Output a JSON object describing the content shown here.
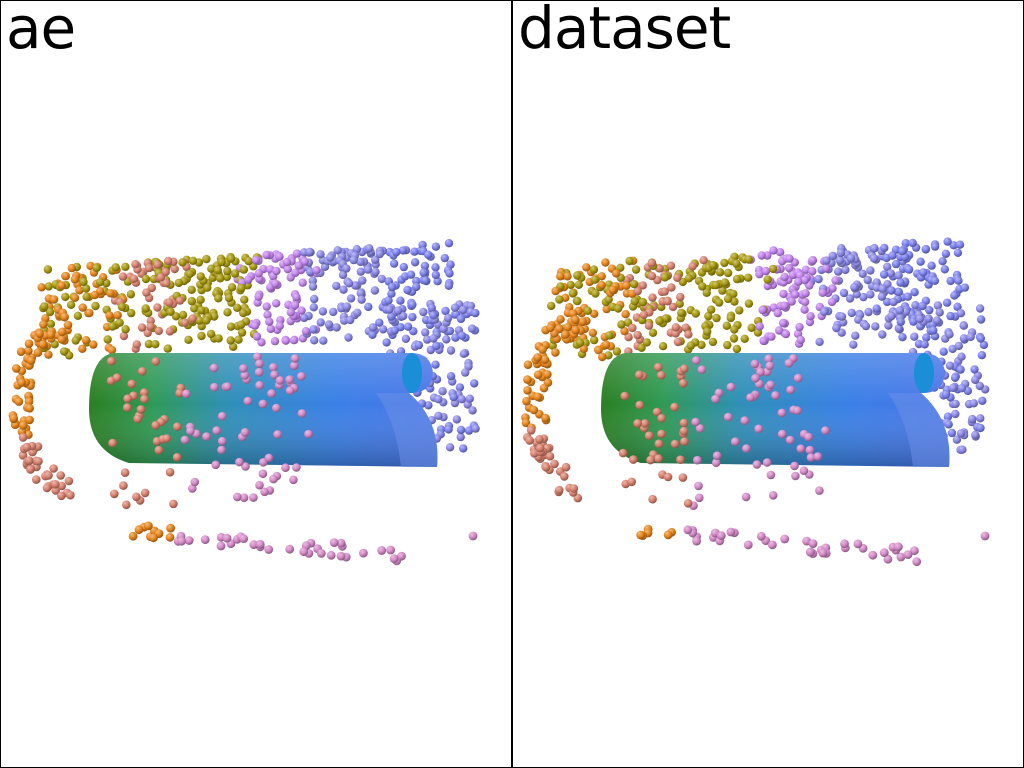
{
  "panels": [
    {
      "title": "ae",
      "variant": "reconstruction"
    },
    {
      "title": "dataset",
      "variant": "original"
    }
  ],
  "palette": {
    "orange": "#e7861c",
    "salmon": "#d9826f",
    "olive": "#a89a10",
    "pink": "#d58bc8",
    "violet": "#c486ee",
    "lavender": "#8c8ae8",
    "periwinkle": "#7d83ef",
    "green": "#2f8a2a",
    "blue": "#3a7fe0",
    "cyan": "#1c9ae8"
  }
}
